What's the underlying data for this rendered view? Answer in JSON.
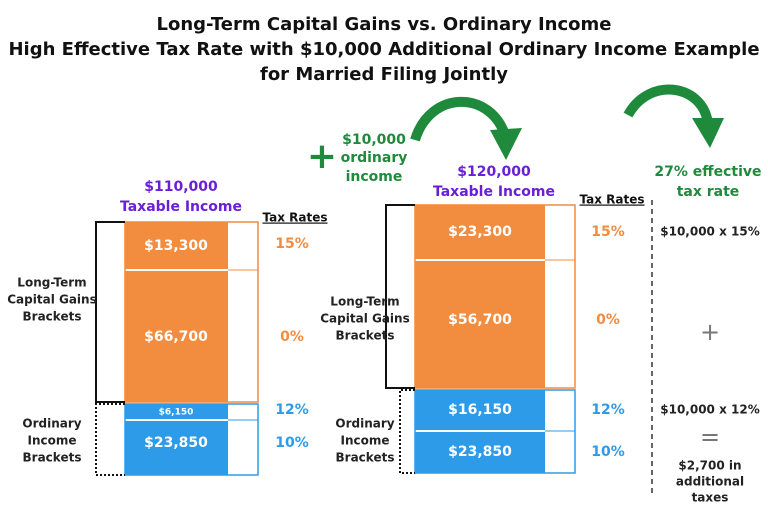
{
  "title": [
    "Long-Term Capital Gains vs. Ordinary Income",
    "High Effective Tax Rate with $10,000 Additional Ordinary Income Example",
    "for Married Filing Jointly"
  ],
  "left": {
    "income": [
      "$110,000",
      "Taxable Income"
    ],
    "tax_rates_header": "Tax Rates",
    "segments": [
      {
        "amount": "$13,300",
        "rate": "15%"
      },
      {
        "amount": "$66,700",
        "rate": "0%"
      },
      {
        "amount": "$6,150",
        "rate": "12%"
      },
      {
        "amount": "$23,850",
        "rate": "10%"
      }
    ],
    "groups": [
      [
        "Long-Term",
        "Capital Gains",
        "Brackets"
      ],
      [
        "Ordinary",
        "Income",
        "Brackets"
      ]
    ]
  },
  "addition": {
    "symbol": "+",
    "label": [
      "$10,000",
      "ordinary",
      "income"
    ]
  },
  "right": {
    "income": [
      "$120,000",
      "Taxable Income"
    ],
    "tax_rates_header": "Tax Rates",
    "segments": [
      {
        "amount": "$23,300",
        "rate": "15%"
      },
      {
        "amount": "$56,700",
        "rate": "0%"
      },
      {
        "amount": "$16,150",
        "rate": "12%"
      },
      {
        "amount": "$23,850",
        "rate": "10%"
      }
    ],
    "groups": [
      [
        "Long-Term",
        "Capital Gains",
        "Brackets"
      ],
      [
        "Ordinary",
        "Income",
        "Brackets"
      ]
    ]
  },
  "result": {
    "effective_rate": [
      "27% effective",
      "tax rate"
    ],
    "calc_1": "$10,000 x 15%",
    "plus": "+",
    "calc_2": "$10,000 x 12%",
    "equals": "=",
    "total": [
      "$2,700 in",
      "additional",
      "taxes"
    ]
  }
}
